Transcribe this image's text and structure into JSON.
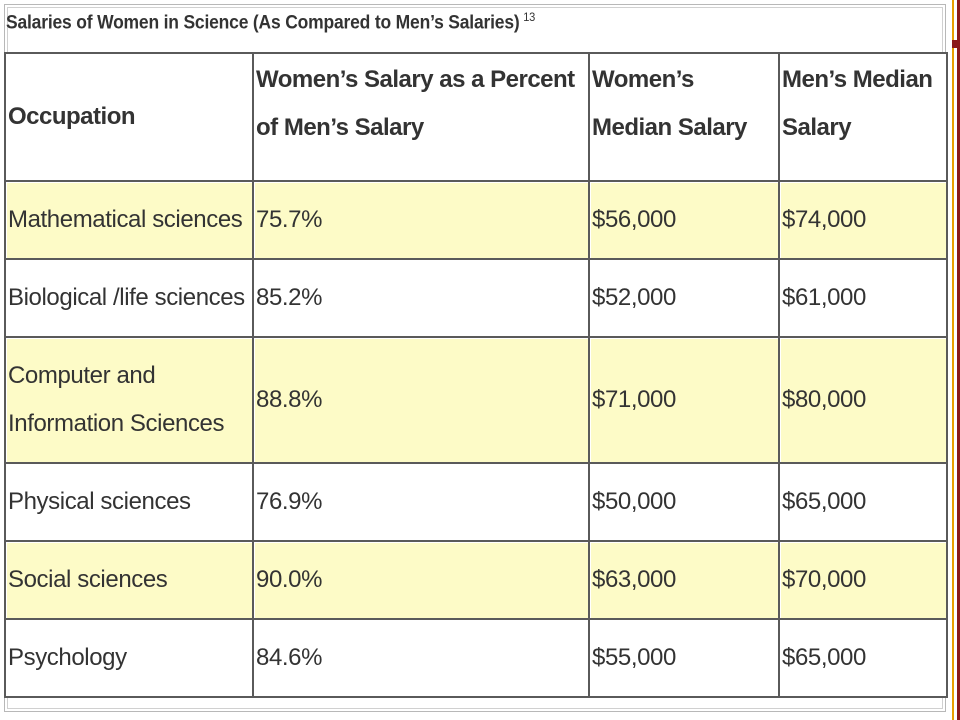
{
  "caption": {
    "title": "Salaries of Women in Science (As Compared to Men’s Salaries)",
    "footnote": "13"
  },
  "table": {
    "headers": [
      "Occupation",
      "Women’s Salary as a Percent of Men’s Salary",
      "Women’s Median Salary",
      "Men’s Median Salary"
    ],
    "rows": [
      [
        "Mathematical sciences",
        "75.7%",
        "$56,000",
        "$74,000"
      ],
      [
        "Biological /life sciences",
        "85.2%",
        "$52,000",
        "$61,000"
      ],
      [
        "Computer and Information Sciences",
        "88.8%",
        "$71,000",
        "$80,000"
      ],
      [
        "Physical sciences",
        "76.9%",
        "$50,000",
        "$65,000"
      ],
      [
        "Social sciences",
        "90.0%",
        "$63,000",
        "$70,000"
      ],
      [
        "Psychology",
        "84.6%",
        "$55,000",
        "$65,000"
      ]
    ]
  },
  "colors": {
    "highlight_row": "#fdfbc7",
    "border": "#5a5a5a",
    "accent_orange": "#e8a000",
    "accent_maroon": "#8a1a1a"
  }
}
